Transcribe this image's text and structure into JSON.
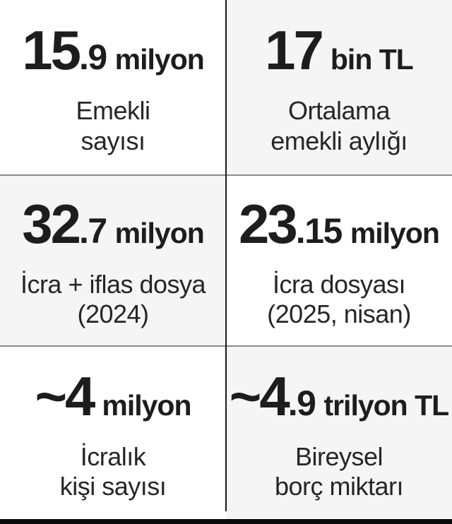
{
  "colors": {
    "bg_white": "#ffffff",
    "bg_gray": "#f5f5f5",
    "text_dark": "#1d1d1d",
    "text_label": "#262626",
    "divider_gray": "#8a8a8a",
    "divider_black": "#1a1a1a",
    "bottom_bar": "#0d0d0d"
  },
  "cells": [
    {
      "big": "15",
      "dec": ".9",
      "suffix": "milyon",
      "label1": "Emekli",
      "label2": "sayısı"
    },
    {
      "big": "17",
      "dec": "",
      "suffix": "bin TL",
      "label1": "Ortalama",
      "label2": "emekli aylığı"
    },
    {
      "big": "32",
      "dec": ".7",
      "suffix": "milyon",
      "label1": "İcra + iflas dosya",
      "label2": "(2024)"
    },
    {
      "big": "23",
      "dec": ".15",
      "suffix": "milyon",
      "label1": "İcra dosyası",
      "label2": "(2025, nisan)"
    },
    {
      "big": "~4",
      "dec": "",
      "suffix": "milyon",
      "label1": "İcralık",
      "label2": "kişi sayısı"
    },
    {
      "big": "~4",
      "dec": ".9",
      "suffix": "trilyon TL",
      "label1": "Bireysel",
      "label2": "borç miktarı"
    }
  ],
  "chart_data": {
    "type": "table",
    "title": "",
    "entries": [
      {
        "value": 15.9,
        "approximate": false,
        "unit": "milyon",
        "label": "Emekli sayısı"
      },
      {
        "value": 17,
        "approximate": false,
        "unit": "bin TL",
        "label": "Ortalama emekli aylığı"
      },
      {
        "value": 32.7,
        "approximate": false,
        "unit": "milyon",
        "label": "İcra + iflas dosya (2024)"
      },
      {
        "value": 23.15,
        "approximate": false,
        "unit": "milyon",
        "label": "İcra dosyası (2025, nisan)"
      },
      {
        "value": 4,
        "approximate": true,
        "unit": "milyon",
        "label": "İcralık kişi sayısı"
      },
      {
        "value": 4.9,
        "approximate": true,
        "unit": "trilyon TL",
        "label": "Bireysel borç miktarı"
      }
    ],
    "layout": "2x3-grid-checkerboard"
  }
}
